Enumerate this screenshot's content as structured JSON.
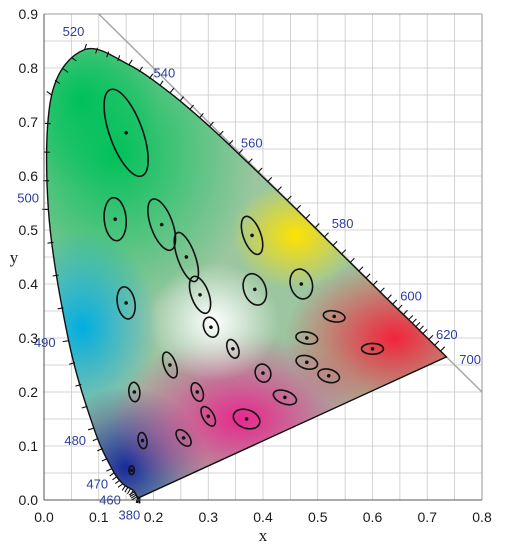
{
  "chart_data": {
    "type": "scatter",
    "xlabel": "x",
    "ylabel": "y",
    "xlim": [
      0.0,
      0.8
    ],
    "ylim": [
      0.0,
      0.9
    ],
    "x_ticks": [
      "0.0",
      "0.1",
      "0.2",
      "0.3",
      "0.4",
      "0.5",
      "0.6",
      "0.7",
      "0.8"
    ],
    "y_ticks": [
      "0.0",
      "0.1",
      "0.2",
      "0.3",
      "0.4",
      "0.5",
      "0.6",
      "0.7",
      "0.8",
      "0.9"
    ],
    "x_tick_values": [
      0.0,
      0.1,
      0.2,
      0.3,
      0.4,
      0.5,
      0.6,
      0.7,
      0.8
    ],
    "y_tick_values": [
      0.0,
      0.1,
      0.2,
      0.3,
      0.4,
      0.5,
      0.6,
      0.7,
      0.8,
      0.9
    ],
    "grid": true,
    "gamut_boundary": [
      [
        0.175,
        0.005
      ],
      [
        0.174,
        0.005
      ],
      [
        0.17,
        0.006
      ],
      [
        0.163,
        0.018
      ],
      [
        0.144,
        0.03
      ],
      [
        0.124,
        0.058
      ],
      [
        0.091,
        0.133
      ],
      [
        0.045,
        0.295
      ],
      [
        0.008,
        0.538
      ],
      [
        0.014,
        0.75
      ],
      [
        0.074,
        0.834
      ],
      [
        0.155,
        0.806
      ],
      [
        0.23,
        0.754
      ],
      [
        0.302,
        0.692
      ],
      [
        0.373,
        0.624
      ],
      [
        0.444,
        0.555
      ],
      [
        0.512,
        0.487
      ],
      [
        0.575,
        0.424
      ],
      [
        0.627,
        0.372
      ],
      [
        0.666,
        0.334
      ],
      [
        0.692,
        0.308
      ],
      [
        0.735,
        0.265
      ]
    ],
    "wavelength_labels": [
      {
        "nm": "380",
        "x": 0.175,
        "y": 0.005
      },
      {
        "nm": "460",
        "x": 0.144,
        "y": 0.03
      },
      {
        "nm": "470",
        "x": 0.124,
        "y": 0.058
      },
      {
        "nm": "480",
        "x": 0.091,
        "y": 0.133
      },
      {
        "nm": "490",
        "x": 0.045,
        "y": 0.295
      },
      {
        "nm": "500",
        "x": 0.008,
        "y": 0.538
      },
      {
        "nm": "520",
        "x": 0.074,
        "y": 0.834
      },
      {
        "nm": "540",
        "x": 0.23,
        "y": 0.754
      },
      {
        "nm": "560",
        "x": 0.373,
        "y": 0.624
      },
      {
        "nm": "580",
        "x": 0.512,
        "y": 0.487
      },
      {
        "nm": "600",
        "x": 0.627,
        "y": 0.372
      },
      {
        "nm": "620",
        "x": 0.692,
        "y": 0.308
      },
      {
        "nm": "700",
        "x": 0.735,
        "y": 0.265
      }
    ],
    "reference_line": {
      "from": [
        0.1,
        0.9
      ],
      "to": [
        0.8,
        0.2
      ]
    },
    "ellipses": [
      {
        "cx": 0.15,
        "cy": 0.68,
        "rx": 0.03,
        "ry": 0.085,
        "angle": 20
      },
      {
        "cx": 0.13,
        "cy": 0.52,
        "rx": 0.02,
        "ry": 0.04,
        "angle": 5
      },
      {
        "cx": 0.215,
        "cy": 0.51,
        "rx": 0.02,
        "ry": 0.05,
        "angle": 20
      },
      {
        "cx": 0.26,
        "cy": 0.45,
        "rx": 0.016,
        "ry": 0.048,
        "angle": 20
      },
      {
        "cx": 0.285,
        "cy": 0.38,
        "rx": 0.016,
        "ry": 0.036,
        "angle": 20
      },
      {
        "cx": 0.38,
        "cy": 0.49,
        "rx": 0.016,
        "ry": 0.037,
        "angle": 20
      },
      {
        "cx": 0.385,
        "cy": 0.39,
        "rx": 0.02,
        "ry": 0.03,
        "angle": 20
      },
      {
        "cx": 0.47,
        "cy": 0.4,
        "rx": 0.02,
        "ry": 0.028,
        "angle": 15
      },
      {
        "cx": 0.15,
        "cy": 0.365,
        "rx": 0.016,
        "ry": 0.03,
        "angle": 10
      },
      {
        "cx": 0.305,
        "cy": 0.32,
        "rx": 0.013,
        "ry": 0.019,
        "angle": 20
      },
      {
        "cx": 0.53,
        "cy": 0.34,
        "rx": 0.02,
        "ry": 0.01,
        "angle": -10
      },
      {
        "cx": 0.48,
        "cy": 0.3,
        "rx": 0.02,
        "ry": 0.011,
        "angle": -10
      },
      {
        "cx": 0.6,
        "cy": 0.28,
        "rx": 0.02,
        "ry": 0.01,
        "angle": 0
      },
      {
        "cx": 0.345,
        "cy": 0.28,
        "rx": 0.01,
        "ry": 0.018,
        "angle": 20
      },
      {
        "cx": 0.23,
        "cy": 0.25,
        "rx": 0.011,
        "ry": 0.025,
        "angle": 20
      },
      {
        "cx": 0.4,
        "cy": 0.235,
        "rx": 0.014,
        "ry": 0.017,
        "angle": 20
      },
      {
        "cx": 0.48,
        "cy": 0.255,
        "rx": 0.02,
        "ry": 0.012,
        "angle": -15
      },
      {
        "cx": 0.52,
        "cy": 0.23,
        "rx": 0.02,
        "ry": 0.012,
        "angle": -15
      },
      {
        "cx": 0.165,
        "cy": 0.2,
        "rx": 0.01,
        "ry": 0.018,
        "angle": 5
      },
      {
        "cx": 0.28,
        "cy": 0.2,
        "rx": 0.01,
        "ry": 0.018,
        "angle": 20
      },
      {
        "cx": 0.44,
        "cy": 0.19,
        "rx": 0.022,
        "ry": 0.012,
        "angle": -20
      },
      {
        "cx": 0.3,
        "cy": 0.155,
        "rx": 0.01,
        "ry": 0.02,
        "angle": 30
      },
      {
        "cx": 0.37,
        "cy": 0.15,
        "rx": 0.025,
        "ry": 0.017,
        "angle": -20
      },
      {
        "cx": 0.18,
        "cy": 0.11,
        "rx": 0.008,
        "ry": 0.015,
        "angle": 10
      },
      {
        "cx": 0.255,
        "cy": 0.115,
        "rx": 0.01,
        "ry": 0.018,
        "angle": 40
      },
      {
        "cx": 0.16,
        "cy": 0.055,
        "rx": 0.005,
        "ry": 0.008,
        "angle": 0
      }
    ]
  }
}
